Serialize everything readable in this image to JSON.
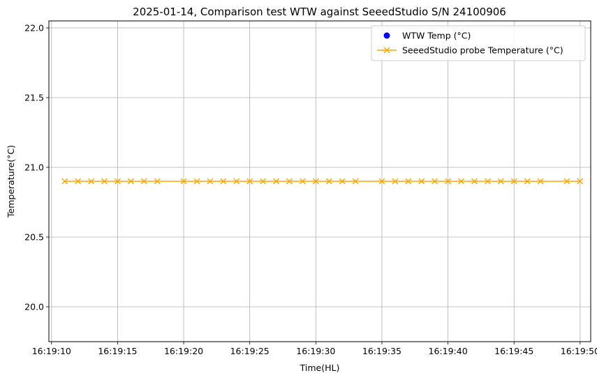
{
  "chart_data": {
    "type": "line",
    "title": "2025-01-14, Comparison test WTW against SeeedStudio S/N 24100906",
    "xlabel": "Time(HL)",
    "ylabel": "Temperature(°C)",
    "ylim": [
      19.75,
      22.05
    ],
    "xlim": [
      "16:19:09.8",
      "16:19:50.8"
    ],
    "x_ticks": [
      "16:19:10",
      "16:19:15",
      "16:19:20",
      "16:19:25",
      "16:19:30",
      "16:19:35",
      "16:19:40",
      "16:19:45",
      "16:19:50"
    ],
    "y_ticks": [
      "20.0",
      "20.5",
      "21.0",
      "21.5",
      "22.0"
    ],
    "grid": true,
    "legend_position": "top-right",
    "series": [
      {
        "name": "WTW Temp (°C)",
        "kind": "scatter",
        "marker": "circle",
        "color": "#0000ff",
        "points": []
      },
      {
        "name": "SeeedStudio probe Temperature (°C)",
        "kind": "line",
        "marker": "x",
        "color": "#ffa500",
        "points": [
          {
            "x": "16:19:11",
            "y": 20.9
          },
          {
            "x": "16:19:12",
            "y": 20.9
          },
          {
            "x": "16:19:13",
            "y": 20.9
          },
          {
            "x": "16:19:14",
            "y": 20.9
          },
          {
            "x": "16:19:15",
            "y": 20.9
          },
          {
            "x": "16:19:16",
            "y": 20.9
          },
          {
            "x": "16:19:17",
            "y": 20.9
          },
          {
            "x": "16:19:18",
            "y": 20.9
          },
          {
            "x": "16:19:20",
            "y": 20.9
          },
          {
            "x": "16:19:21",
            "y": 20.9
          },
          {
            "x": "16:19:22",
            "y": 20.9
          },
          {
            "x": "16:19:23",
            "y": 20.9
          },
          {
            "x": "16:19:24",
            "y": 20.9
          },
          {
            "x": "16:19:25",
            "y": 20.9
          },
          {
            "x": "16:19:26",
            "y": 20.9
          },
          {
            "x": "16:19:27",
            "y": 20.9
          },
          {
            "x": "16:19:28",
            "y": 20.9
          },
          {
            "x": "16:19:29",
            "y": 20.9
          },
          {
            "x": "16:19:30",
            "y": 20.9
          },
          {
            "x": "16:19:31",
            "y": 20.9
          },
          {
            "x": "16:19:32",
            "y": 20.9
          },
          {
            "x": "16:19:33",
            "y": 20.9
          },
          {
            "x": "16:19:35",
            "y": 20.9
          },
          {
            "x": "16:19:36",
            "y": 20.9
          },
          {
            "x": "16:19:37",
            "y": 20.9
          },
          {
            "x": "16:19:38",
            "y": 20.9
          },
          {
            "x": "16:19:39",
            "y": 20.9
          },
          {
            "x": "16:19:40",
            "y": 20.9
          },
          {
            "x": "16:19:41",
            "y": 20.9
          },
          {
            "x": "16:19:42",
            "y": 20.9
          },
          {
            "x": "16:19:43",
            "y": 20.9
          },
          {
            "x": "16:19:44",
            "y": 20.9
          },
          {
            "x": "16:19:45",
            "y": 20.9
          },
          {
            "x": "16:19:46",
            "y": 20.9
          },
          {
            "x": "16:19:47",
            "y": 20.9
          },
          {
            "x": "16:19:49",
            "y": 20.9
          },
          {
            "x": "16:19:50",
            "y": 20.9
          }
        ]
      }
    ]
  }
}
